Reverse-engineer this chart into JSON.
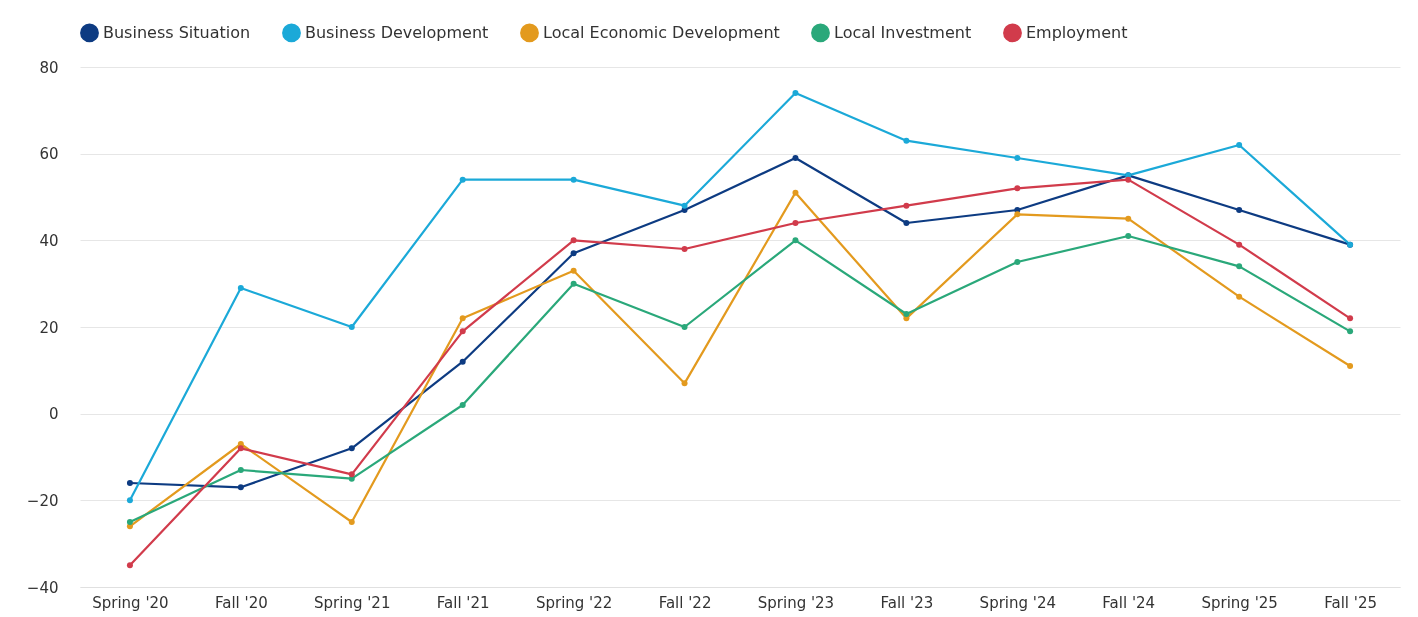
{
  "chart_data": {
    "type": "line",
    "categories": [
      "Spring '20",
      "Fall '20",
      "Spring '21",
      "Fall '21",
      "Spring '22",
      "Fall '22",
      "Spring '23",
      "Fall '23",
      "Spring '24",
      "Fall '24",
      "Spring '25",
      "Fall '25"
    ],
    "series": [
      {
        "name": "Business Situation",
        "color": "#0d3b82",
        "values": [
          -16,
          -17,
          -8,
          12,
          37,
          47,
          59,
          44,
          47,
          55,
          47,
          39
        ]
      },
      {
        "name": "Business Development",
        "color": "#1ba9d8",
        "values": [
          -20,
          29,
          20,
          54,
          54,
          48,
          74,
          63,
          59,
          55,
          62,
          39
        ]
      },
      {
        "name": "Local Economic Development",
        "color": "#e39a1e",
        "values": [
          -26,
          -7,
          -25,
          22,
          33,
          7,
          51,
          22,
          46,
          45,
          27,
          11
        ]
      },
      {
        "name": "Local Investment",
        "color": "#2aa87a",
        "values": [
          -25,
          -13,
          -15,
          2,
          30,
          20,
          40,
          23,
          35,
          41,
          34,
          19
        ]
      },
      {
        "name": "Employment",
        "color": "#d13b4b",
        "values": [
          -35,
          -8,
          -14,
          19,
          40,
          38,
          44,
          48,
          52,
          54,
          39,
          22
        ]
      }
    ],
    "ylim": [
      -40,
      80
    ],
    "yticks": [
      -40,
      -20,
      0,
      20,
      40,
      60,
      80
    ],
    "grid": "y",
    "legend": "top",
    "marker": "circle",
    "line_style": "solid"
  }
}
